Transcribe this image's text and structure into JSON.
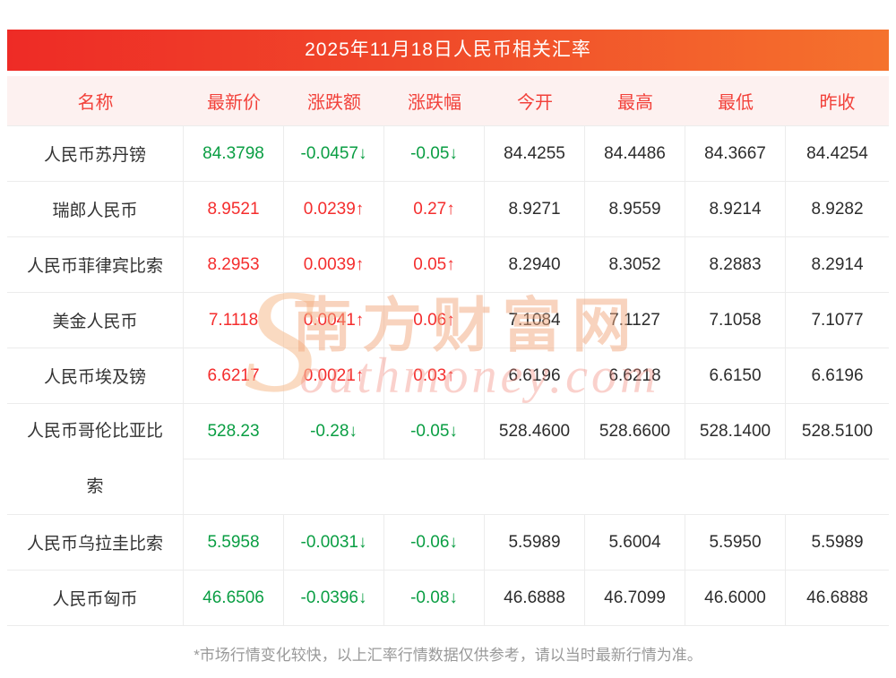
{
  "page": {
    "title": "2025年11月18日人民币相关汇率",
    "footnote": "*市场行情变化较快，以上汇率行情数据仅供参考，请以当时最新行情为准。"
  },
  "watermark": {
    "initial": "S",
    "cn": "南方财富网",
    "en": "outhmoney.com"
  },
  "colors": {
    "title_gradient_left": "#ee2b26",
    "title_gradient_right": "#f5722d",
    "header_bg": "#fdf1f0",
    "header_text": "#f2413a",
    "up_red": "#f42d2d",
    "down_green": "#0a9e43",
    "border": "#ececec",
    "footnote_gray": "#999999",
    "watermark_orange": "#f2a87e"
  },
  "chart_data": {
    "type": "table",
    "title": "2025年11月18日人民币相关汇率",
    "columns": [
      "名称",
      "最新价",
      "涨跌额",
      "涨跌幅",
      "今开",
      "最高",
      "最低",
      "昨收"
    ],
    "rows": [
      [
        "人民币苏丹镑",
        "84.3798",
        "-0.0457↓",
        "-0.05↓",
        "84.4255",
        "84.4486",
        "84.3667",
        "84.4254"
      ],
      [
        "瑞郎人民币",
        "8.9521",
        "0.0239↑",
        "0.27↑",
        "8.9271",
        "8.9559",
        "8.9214",
        "8.9282"
      ],
      [
        "人民币菲律宾比索",
        "8.2953",
        "0.0039↑",
        "0.05↑",
        "8.2940",
        "8.3052",
        "8.2883",
        "8.2914"
      ],
      [
        "美金人民币",
        "7.1118",
        "0.0041↑",
        "0.06↑",
        "7.1084",
        "7.1127",
        "7.1058",
        "7.1077"
      ],
      [
        "人民币埃及镑",
        "6.6217",
        "0.0021↑",
        "0.03↑",
        "6.6196",
        "6.6218",
        "6.6150",
        "6.6196"
      ],
      [
        "人民币哥伦比亚比索",
        "528.23",
        "-0.28↓",
        "-0.05↓",
        "528.4600",
        "528.6600",
        "528.1400",
        "528.5100"
      ],
      [
        "人民币乌拉圭比索",
        "5.5958",
        "-0.0031↓",
        "-0.06↓",
        "5.5989",
        "5.6004",
        "5.5950",
        "5.5989"
      ],
      [
        "人民币匈币",
        "46.6506",
        "-0.0396↓",
        "-0.08↓",
        "46.6888",
        "46.7099",
        "46.6000",
        "46.6888"
      ]
    ],
    "trends": [
      "down",
      "up",
      "up",
      "up",
      "up",
      "down",
      "down",
      "down"
    ],
    "note": "*市场行情变化较快，以上汇率行情数据仅供参考，请以当时最新行情为准。"
  }
}
